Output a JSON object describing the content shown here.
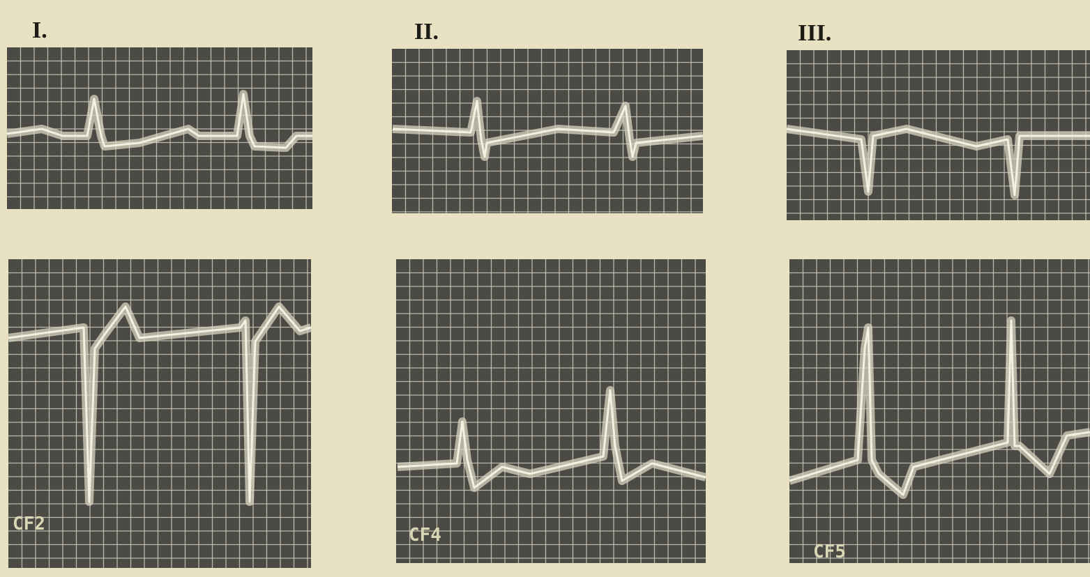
{
  "columns": [
    {
      "heading": "I.",
      "lead": "CF2"
    },
    {
      "heading": "II.",
      "lead": "CF4"
    },
    {
      "heading": "III.",
      "lead": "CF5"
    }
  ]
}
